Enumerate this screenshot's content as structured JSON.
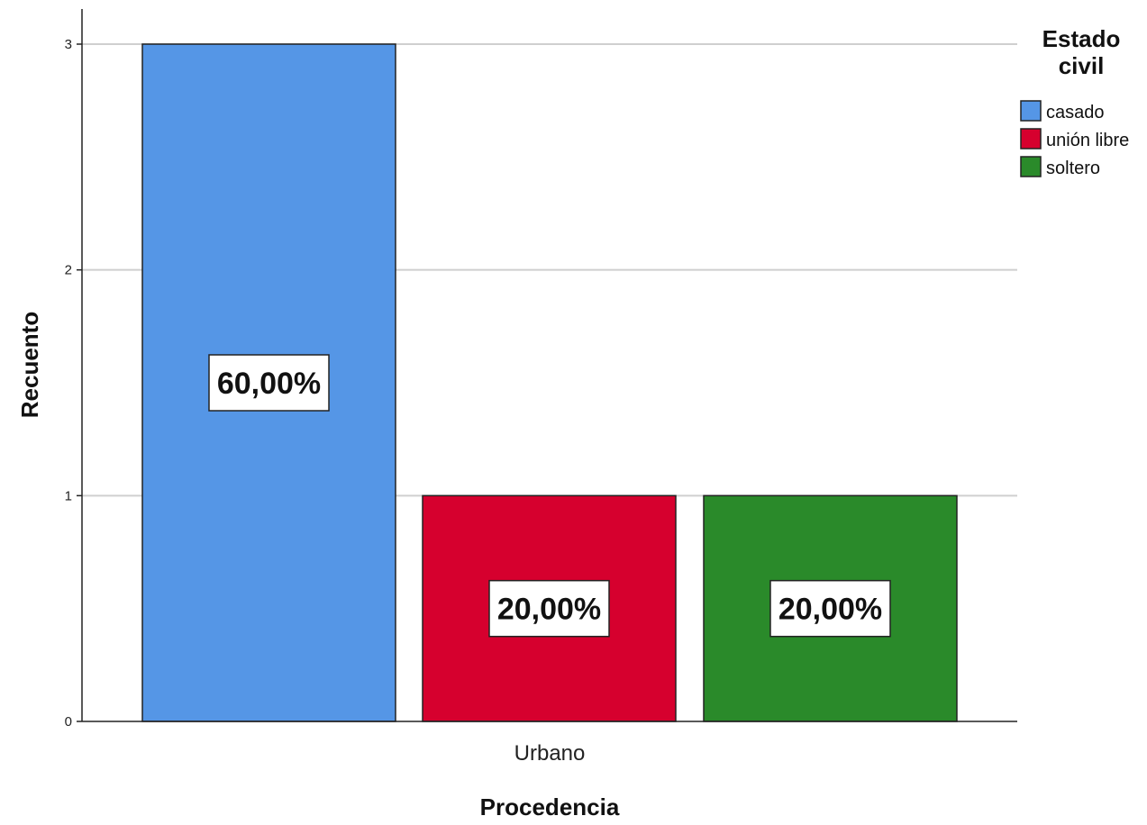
{
  "chart_data": {
    "type": "bar",
    "categories": [
      "Urbano"
    ],
    "series": [
      {
        "name": "casado",
        "values": [
          3
        ],
        "label": "60,00%",
        "color": "#5596e6"
      },
      {
        "name": "unión libre",
        "values": [
          1
        ],
        "label": "20,00%",
        "color": "#d6002e"
      },
      {
        "name": "soltero",
        "values": [
          1
        ],
        "label": "20,00%",
        "color": "#2a8a2a"
      }
    ],
    "title": "",
    "xlabel": "Procedencia",
    "ylabel": "Recuento",
    "ylim": [
      0,
      3
    ],
    "yticks": [
      0,
      1,
      2,
      3
    ],
    "ytick_labels": [
      "0",
      "1",
      "2",
      "3"
    ],
    "grid": "horizontal",
    "legend": {
      "title_line1": "Estado",
      "title_line2": "civil",
      "placement": "top-right"
    },
    "colors": {
      "gridline": "#cfcfcf",
      "axis": "#222222",
      "bar_outline": "#222222"
    }
  }
}
